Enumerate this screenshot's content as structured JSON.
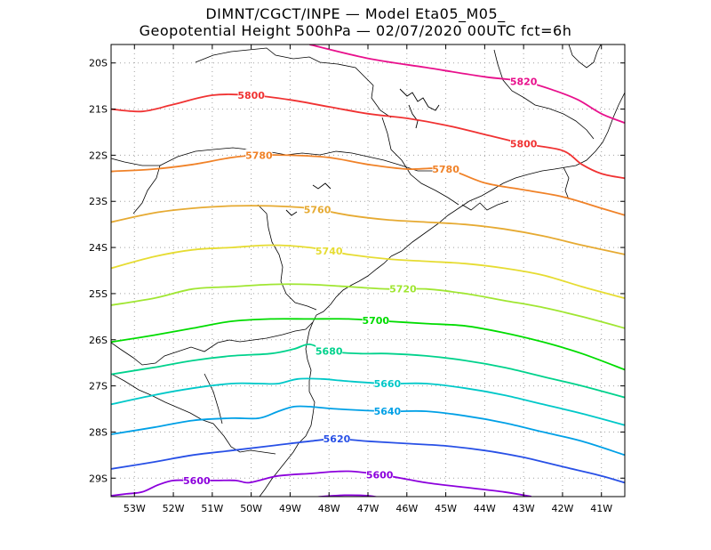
{
  "header": {
    "line1": "DIMNT/CGCT/INPE  —   Model Eta05_M05_",
    "line2": "Geopotential Height 500hPa  —   02/07/2020 00UTC fct=6h"
  },
  "chart_data": {
    "type": "contour_map",
    "title": "Geopotential Height 500hPa",
    "lon_range": [
      -53.6,
      -40.4
    ],
    "lat_range": [
      -29.4,
      -19.6
    ],
    "x_ticks": [
      "53W",
      "52W",
      "51W",
      "50W",
      "49W",
      "48W",
      "47W",
      "46W",
      "45W",
      "44W",
      "43W",
      "42W",
      "41W"
    ],
    "y_ticks": [
      "20S",
      "21S",
      "22S",
      "23S",
      "24S",
      "25S",
      "26S",
      "27S",
      "28S",
      "29S"
    ],
    "grid": true,
    "contours": [
      {
        "level": "5820",
        "color": "#e8108c",
        "label_lon": -43.0,
        "points": [
          [
            -48.5,
            -19.6
          ],
          [
            -47.0,
            -19.9
          ],
          [
            -45.5,
            -20.1
          ],
          [
            -44.0,
            -20.3
          ],
          [
            -43.0,
            -20.4
          ],
          [
            -42.2,
            -20.6
          ],
          [
            -41.6,
            -20.8
          ],
          [
            -41.0,
            -21.1
          ],
          [
            -40.4,
            -21.3
          ]
        ]
      },
      {
        "level": "5800",
        "color": "#f03232",
        "label_lon": -50.0,
        "label_lon2": -43.0,
        "points": [
          [
            -53.6,
            -21.0
          ],
          [
            -52.8,
            -21.05
          ],
          [
            -52.0,
            -20.9
          ],
          [
            -51.0,
            -20.7
          ],
          [
            -50.0,
            -20.7
          ],
          [
            -49.0,
            -20.8
          ],
          [
            -48.0,
            -20.95
          ],
          [
            -47.0,
            -21.1
          ],
          [
            -46.0,
            -21.2
          ],
          [
            -45.0,
            -21.35
          ],
          [
            -44.0,
            -21.55
          ],
          [
            -43.0,
            -21.75
          ],
          [
            -42.0,
            -21.9
          ],
          [
            -41.5,
            -22.2
          ],
          [
            -41.0,
            -22.4
          ],
          [
            -40.4,
            -22.5
          ]
        ]
      },
      {
        "level": "5780",
        "color": "#f08228",
        "label_lon": -49.8,
        "label_lon2": -45.0,
        "points": [
          [
            -53.6,
            -22.35
          ],
          [
            -52.5,
            -22.3
          ],
          [
            -51.5,
            -22.2
          ],
          [
            -50.5,
            -22.05
          ],
          [
            -49.8,
            -22.0
          ],
          [
            -49.0,
            -22.0
          ],
          [
            -48.0,
            -22.05
          ],
          [
            -47.0,
            -22.2
          ],
          [
            -46.0,
            -22.3
          ],
          [
            -45.0,
            -22.3
          ],
          [
            -44.0,
            -22.6
          ],
          [
            -43.0,
            -22.75
          ],
          [
            -42.0,
            -22.9
          ],
          [
            -41.0,
            -23.15
          ],
          [
            -40.4,
            -23.3
          ]
        ]
      },
      {
        "level": "5760",
        "color": "#e6aa32",
        "label_lon": -48.3,
        "points": [
          [
            -53.6,
            -23.45
          ],
          [
            -52.5,
            -23.25
          ],
          [
            -51.5,
            -23.15
          ],
          [
            -50.5,
            -23.1
          ],
          [
            -49.5,
            -23.1
          ],
          [
            -48.5,
            -23.15
          ],
          [
            -47.5,
            -23.3
          ],
          [
            -46.5,
            -23.4
          ],
          [
            -45.5,
            -23.45
          ],
          [
            -44.5,
            -23.5
          ],
          [
            -43.5,
            -23.6
          ],
          [
            -42.5,
            -23.75
          ],
          [
            -41.5,
            -23.95
          ],
          [
            -40.4,
            -24.15
          ]
        ]
      },
      {
        "level": "5740",
        "color": "#e6dc32",
        "label_lon": -48.0,
        "points": [
          [
            -53.6,
            -24.45
          ],
          [
            -52.5,
            -24.2
          ],
          [
            -51.5,
            -24.05
          ],
          [
            -50.5,
            -24.0
          ],
          [
            -49.5,
            -23.95
          ],
          [
            -48.5,
            -24.0
          ],
          [
            -47.5,
            -24.15
          ],
          [
            -46.5,
            -24.25
          ],
          [
            -45.5,
            -24.3
          ],
          [
            -44.5,
            -24.35
          ],
          [
            -43.5,
            -24.45
          ],
          [
            -42.5,
            -24.6
          ],
          [
            -41.5,
            -24.85
          ],
          [
            -40.4,
            -25.1
          ]
        ]
      },
      {
        "level": "5720",
        "color": "#a0e632",
        "label_lon": -46.1,
        "points": [
          [
            -53.6,
            -25.25
          ],
          [
            -52.5,
            -25.1
          ],
          [
            -51.5,
            -24.9
          ],
          [
            -50.5,
            -24.85
          ],
          [
            -49.5,
            -24.8
          ],
          [
            -48.5,
            -24.8
          ],
          [
            -47.5,
            -24.85
          ],
          [
            -46.5,
            -24.9
          ],
          [
            -45.5,
            -24.9
          ],
          [
            -44.5,
            -25.0
          ],
          [
            -43.5,
            -25.15
          ],
          [
            -42.5,
            -25.3
          ],
          [
            -41.5,
            -25.5
          ],
          [
            -40.4,
            -25.75
          ]
        ]
      },
      {
        "level": "5700",
        "color": "#00dc00",
        "label_lon": -46.8,
        "points": [
          [
            -53.6,
            -26.05
          ],
          [
            -52.5,
            -25.9
          ],
          [
            -51.5,
            -25.75
          ],
          [
            -50.5,
            -25.6
          ],
          [
            -49.5,
            -25.55
          ],
          [
            -48.5,
            -25.55
          ],
          [
            -47.5,
            -25.55
          ],
          [
            -46.5,
            -25.6
          ],
          [
            -45.5,
            -25.65
          ],
          [
            -44.5,
            -25.7
          ],
          [
            -43.5,
            -25.85
          ],
          [
            -42.5,
            -26.05
          ],
          [
            -41.5,
            -26.3
          ],
          [
            -40.4,
            -26.65
          ]
        ]
      },
      {
        "level": "5680",
        "color": "#00d28c",
        "label_lon": -48.0,
        "points": [
          [
            -53.6,
            -26.75
          ],
          [
            -52.5,
            -26.6
          ],
          [
            -51.5,
            -26.45
          ],
          [
            -50.5,
            -26.35
          ],
          [
            -49.5,
            -26.3
          ],
          [
            -48.9,
            -26.2
          ],
          [
            -48.5,
            -26.1
          ],
          [
            -48.0,
            -26.25
          ],
          [
            -47.2,
            -26.3
          ],
          [
            -46.5,
            -26.3
          ],
          [
            -45.5,
            -26.35
          ],
          [
            -44.5,
            -26.45
          ],
          [
            -43.5,
            -26.6
          ],
          [
            -42.5,
            -26.8
          ],
          [
            -41.5,
            -27.0
          ],
          [
            -40.4,
            -27.25
          ]
        ]
      },
      {
        "level": "5660",
        "color": "#00c8c8",
        "label_lon": -46.5,
        "points": [
          [
            -53.6,
            -27.4
          ],
          [
            -52.5,
            -27.2
          ],
          [
            -51.5,
            -27.05
          ],
          [
            -50.5,
            -26.95
          ],
          [
            -49.8,
            -26.95
          ],
          [
            -49.3,
            -26.95
          ],
          [
            -48.8,
            -26.85
          ],
          [
            -48.2,
            -26.85
          ],
          [
            -47.5,
            -26.9
          ],
          [
            -46.5,
            -26.95
          ],
          [
            -45.5,
            -26.95
          ],
          [
            -44.5,
            -27.05
          ],
          [
            -43.5,
            -27.2
          ],
          [
            -42.5,
            -27.4
          ],
          [
            -41.5,
            -27.6
          ],
          [
            -40.4,
            -27.85
          ]
        ]
      },
      {
        "level": "5640",
        "color": "#00a0e6",
        "label_lon": -46.5,
        "points": [
          [
            -53.6,
            -28.05
          ],
          [
            -52.5,
            -27.9
          ],
          [
            -51.5,
            -27.75
          ],
          [
            -50.5,
            -27.7
          ],
          [
            -49.8,
            -27.7
          ],
          [
            -49.3,
            -27.55
          ],
          [
            -48.9,
            -27.45
          ],
          [
            -48.5,
            -27.45
          ],
          [
            -47.8,
            -27.5
          ],
          [
            -46.5,
            -27.55
          ],
          [
            -45.5,
            -27.55
          ],
          [
            -44.5,
            -27.65
          ],
          [
            -43.5,
            -27.8
          ],
          [
            -42.5,
            -28.0
          ],
          [
            -41.5,
            -28.2
          ],
          [
            -40.4,
            -28.5
          ]
        ]
      },
      {
        "level": "5620",
        "color": "#2850e6",
        "label_lon": -47.8,
        "points": [
          [
            -53.6,
            -28.8
          ],
          [
            -52.5,
            -28.65
          ],
          [
            -51.5,
            -28.5
          ],
          [
            -50.5,
            -28.4
          ],
          [
            -49.5,
            -28.3
          ],
          [
            -48.5,
            -28.2
          ],
          [
            -47.8,
            -28.15
          ],
          [
            -47.0,
            -28.2
          ],
          [
            -46.0,
            -28.25
          ],
          [
            -45.0,
            -28.3
          ],
          [
            -44.0,
            -28.4
          ],
          [
            -43.0,
            -28.55
          ],
          [
            -42.0,
            -28.75
          ],
          [
            -41.0,
            -28.95
          ],
          [
            -40.4,
            -29.1
          ]
        ]
      },
      {
        "level": "5600",
        "color": "#8c00dc",
        "label_lon": -51.4,
        "label_lon2": -46.7,
        "points": [
          [
            -53.6,
            -29.38
          ],
          [
            -53.2,
            -29.34
          ],
          [
            -52.8,
            -29.3
          ],
          [
            -52.4,
            -29.15
          ],
          [
            -52.0,
            -29.05
          ],
          [
            -51.5,
            -29.05
          ],
          [
            -50.9,
            -29.05
          ],
          [
            -50.4,
            -29.05
          ],
          [
            -50.1,
            -29.1
          ],
          [
            -49.8,
            -29.05
          ],
          [
            -49.3,
            -28.95
          ],
          [
            -48.5,
            -28.9
          ],
          [
            -47.5,
            -28.85
          ],
          [
            -46.5,
            -28.95
          ],
          [
            -45.5,
            -29.1
          ],
          [
            -44.5,
            -29.2
          ],
          [
            -43.5,
            -29.3
          ],
          [
            -42.8,
            -29.4
          ]
        ]
      },
      {
        "level": "",
        "color": "#8c00dc",
        "label_lon": 0,
        "points": [
          [
            -48.8,
            -29.45
          ],
          [
            -48.2,
            -29.4
          ],
          [
            -47.6,
            -29.37
          ],
          [
            -47.0,
            -29.38
          ],
          [
            -46.5,
            -29.45
          ]
        ]
      }
    ]
  }
}
